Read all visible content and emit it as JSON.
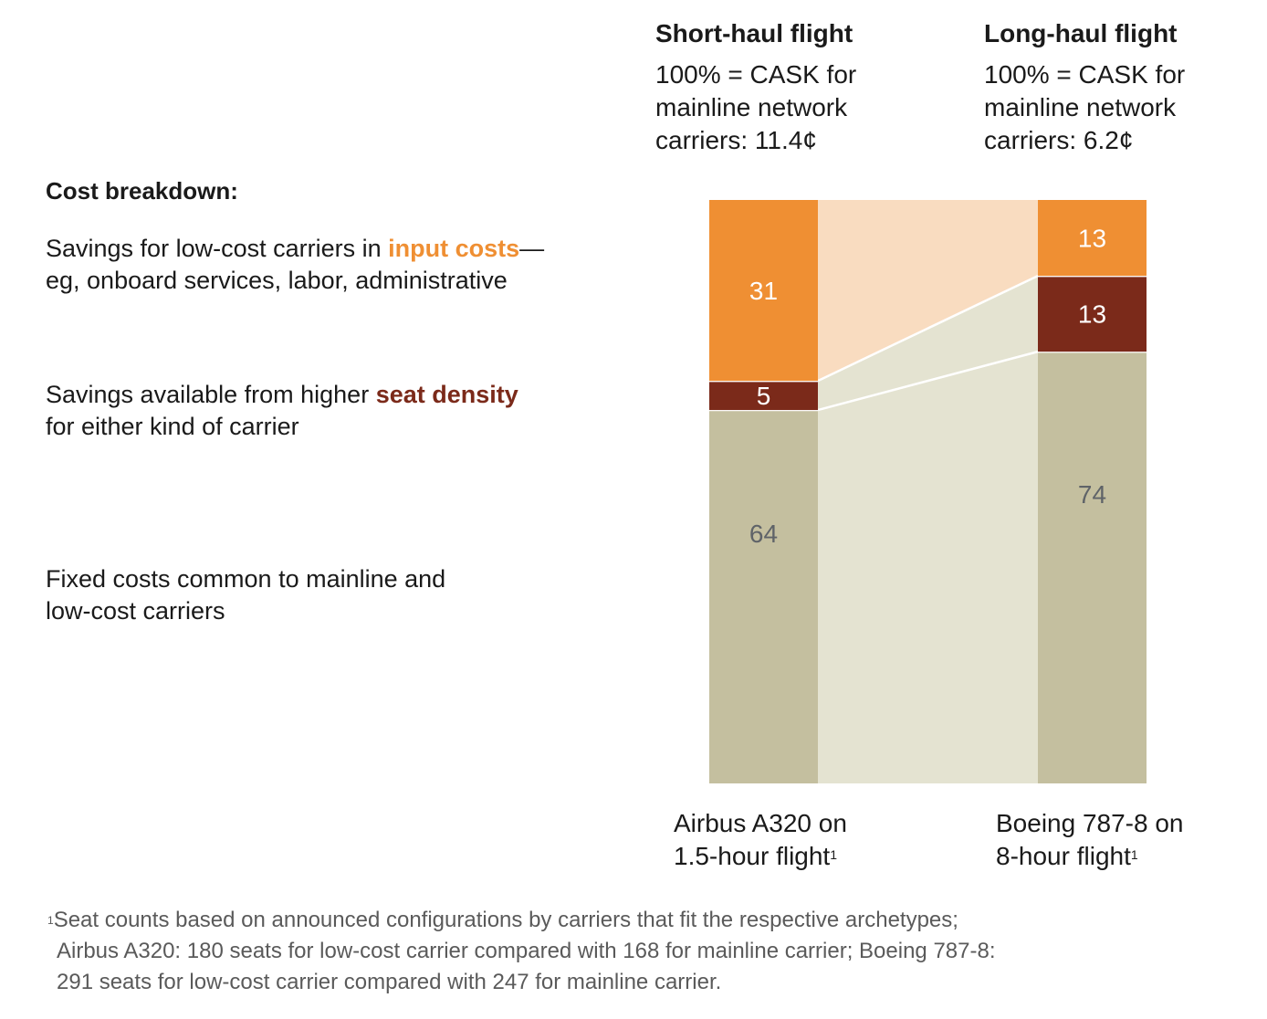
{
  "columns": [
    {
      "title": "Short-haul flight",
      "subtitle_lines": [
        "100% = CASK for",
        "mainline network",
        "carriers: 11.4¢"
      ]
    },
    {
      "title": "Long-haul flight",
      "subtitle_lines": [
        "100% = CASK for",
        "mainline network",
        "carriers: 6.2¢"
      ]
    }
  ],
  "legend": {
    "heading": "Cost breakdown:",
    "items": [
      {
        "prefix": "Savings for low-cost carriers in ",
        "highlight": "input costs",
        "suffix": "—",
        "line2": "eg, onboard services, labor, administrative"
      },
      {
        "prefix": "Savings available from higher ",
        "highlight": "seat density",
        "suffix": "",
        "line2": "for either kind of carrier"
      },
      {
        "line1": "Fixed costs common to mainline and",
        "line2": "low-cost carriers"
      }
    ]
  },
  "x_labels": [
    {
      "line1": "Airbus A320 on",
      "line2": "1.5-hour flight",
      "sup": "1"
    },
    {
      "line1": "Boeing 787-8 on",
      "line2": "8-hour flight",
      "sup": "1"
    }
  ],
  "footnote": {
    "marker": "1",
    "lines": [
      "Seat counts based on announced configurations by carriers that fit the respective archetypes;",
      "Airbus A320: 180 seats for low-cost carrier compared with 168 for mainline carrier; Boeing 787-8:",
      "291 seats for low-cost carrier compared with 247 for mainline carrier."
    ]
  },
  "colors": {
    "input_costs": "#ef8f33",
    "input_costs_band": "#f9dcc0",
    "seat_density": "#7b2a1a",
    "fixed_costs": "#c4bf9f",
    "fixed_band": "#e4e3d1",
    "label_light": "#ffffff",
    "label_dark": "#5f6368"
  },
  "chart_data": {
    "type": "bar",
    "stacked": true,
    "unit": "% of mainline CASK",
    "categories": [
      "Airbus A320 on 1.5-hour flight",
      "Boeing 787-8 on 8-hour flight"
    ],
    "series": [
      {
        "name": "Fixed costs common to mainline and low-cost carriers",
        "values": [
          64,
          74
        ]
      },
      {
        "name": "Savings from higher seat density",
        "values": [
          5,
          13
        ]
      },
      {
        "name": "Savings for low-cost carriers in input costs",
        "values": [
          31,
          13
        ]
      }
    ],
    "ylim": [
      0,
      100
    ],
    "grid": false
  }
}
